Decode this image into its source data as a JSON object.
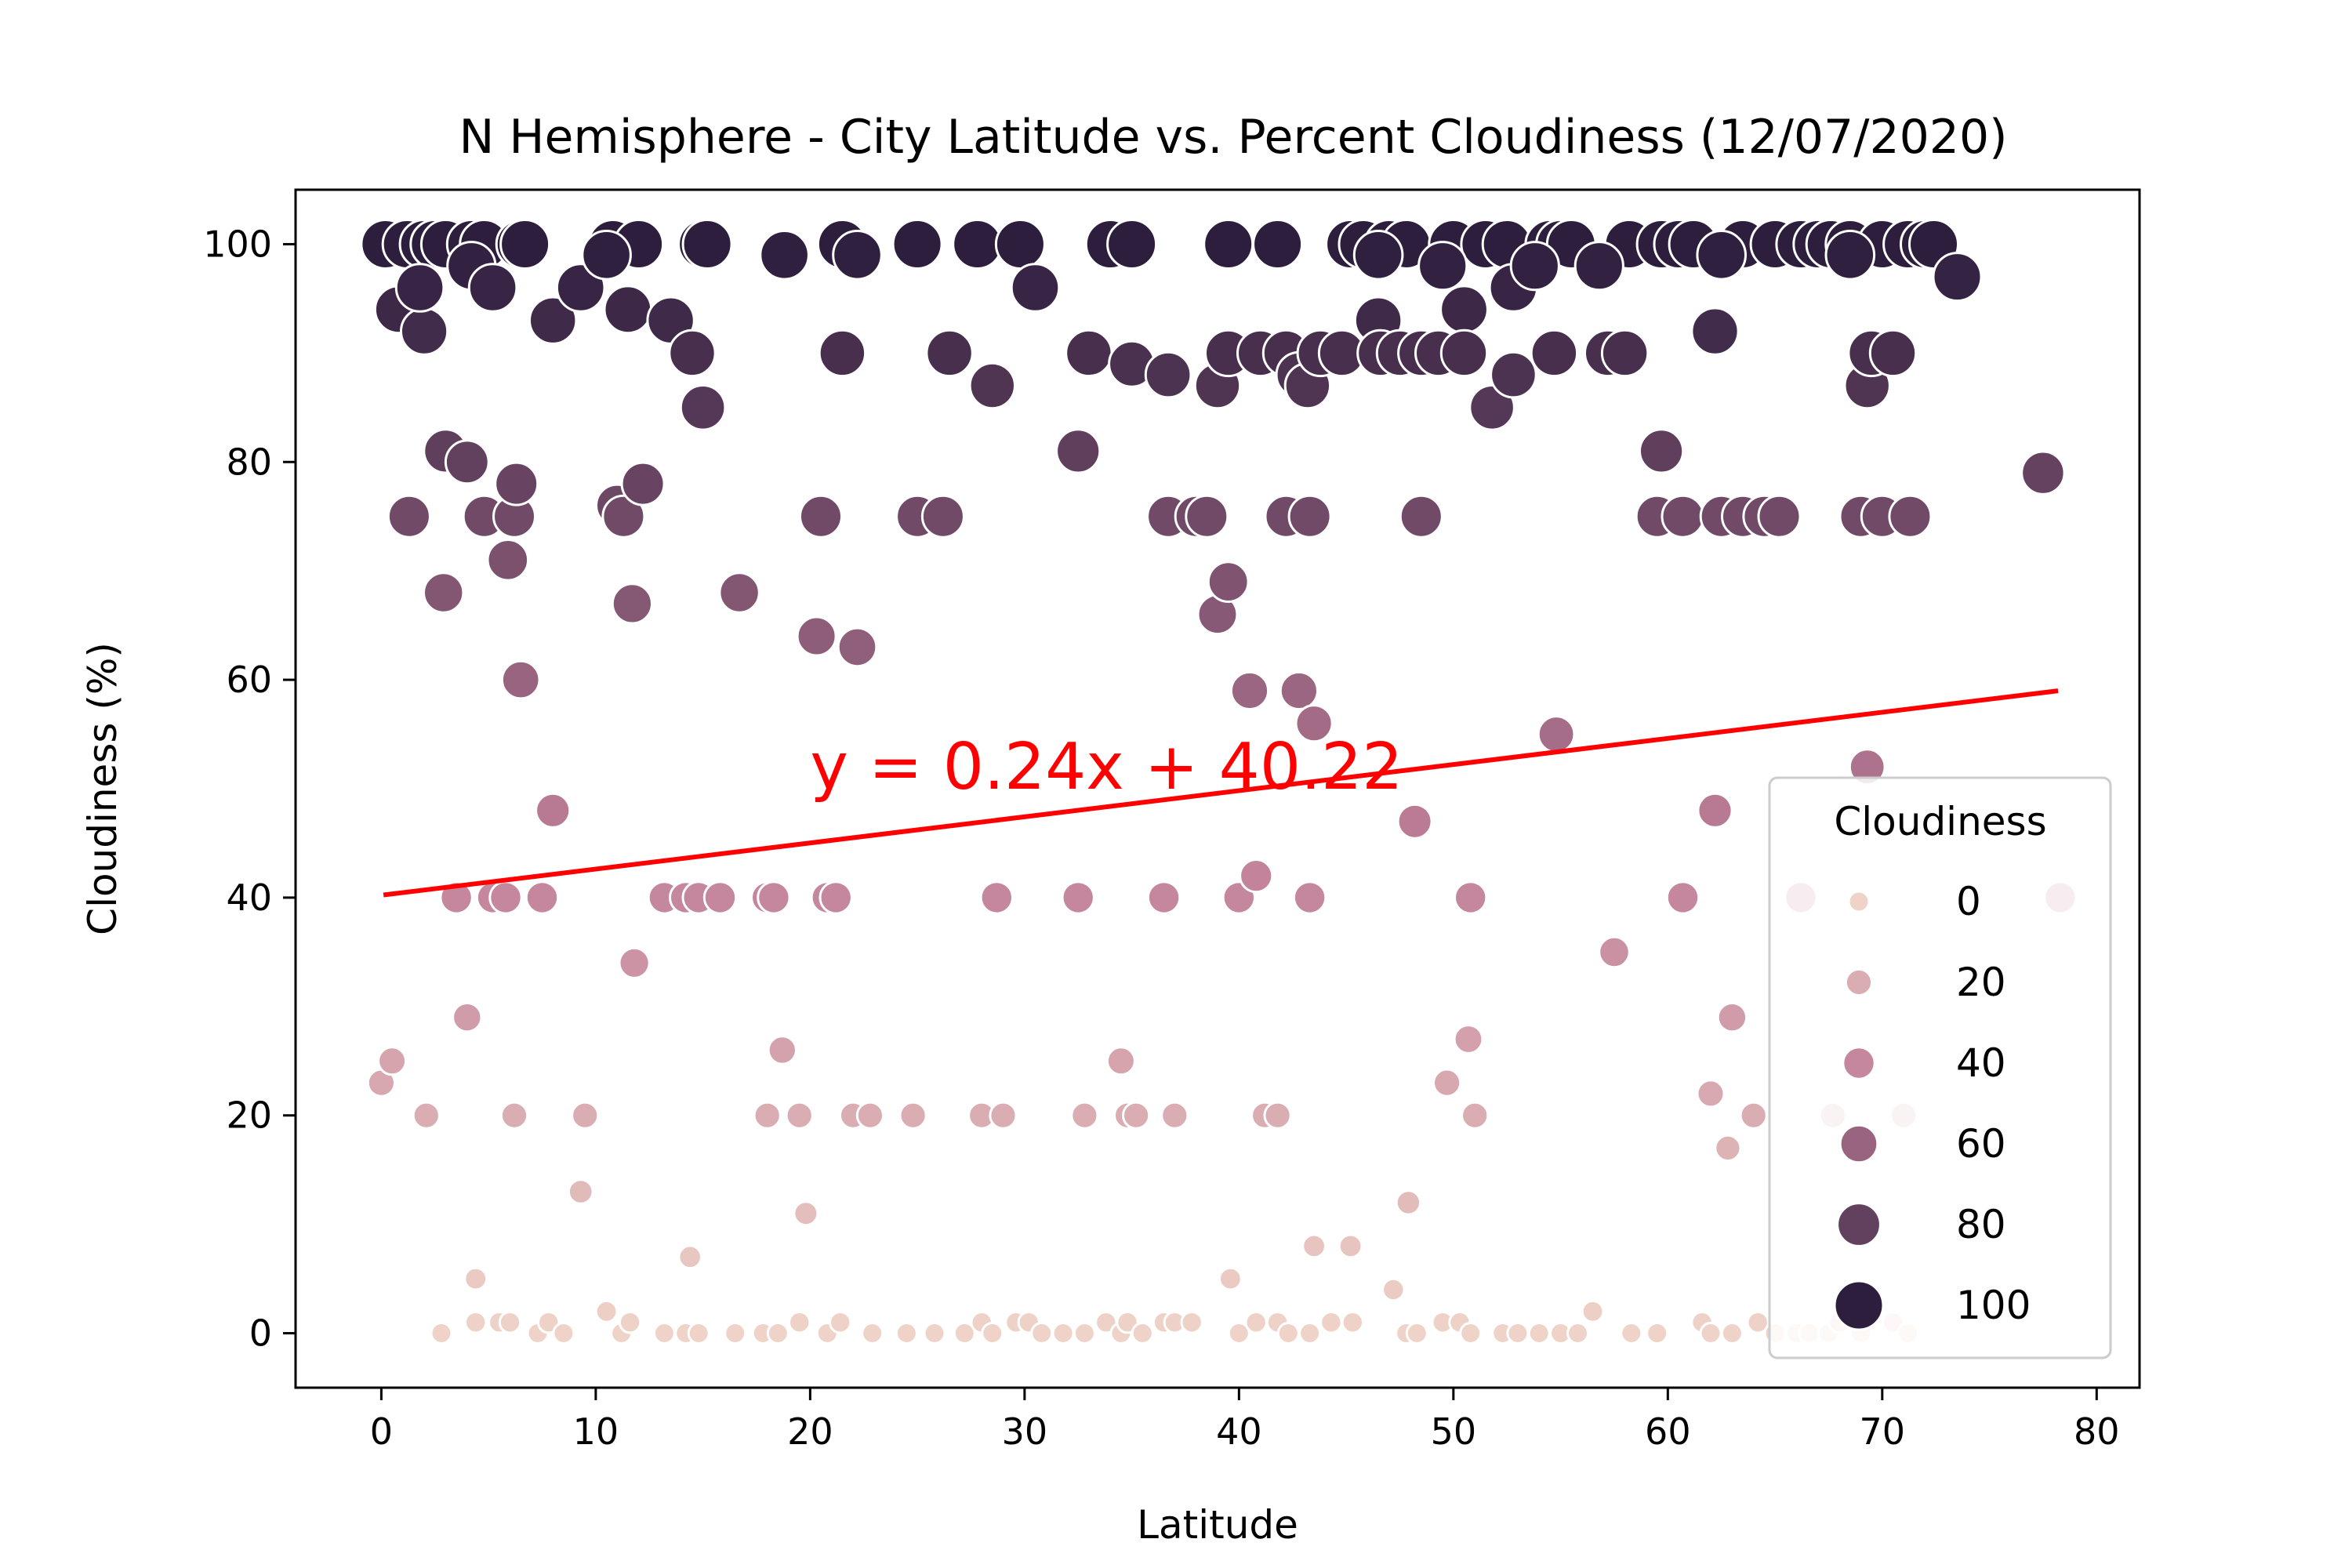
{
  "chart_data": {
    "type": "scatter",
    "title": "N Hemisphere - City Latitude vs. Percent Cloudiness (12/07/2020)",
    "xlabel": "Latitude",
    "ylabel": "Cloudiness (%)",
    "xlim": [
      -4,
      82
    ],
    "ylim": [
      -5,
      105
    ],
    "xticks": [
      0,
      10,
      20,
      30,
      40,
      50,
      60,
      70,
      80
    ],
    "yticks": [
      0,
      20,
      40,
      60,
      80,
      100
    ],
    "grid": false,
    "legend": {
      "title": "Cloudiness",
      "placement": "lower-right",
      "entries": [
        {
          "label": "0",
          "value": 0
        },
        {
          "label": "20",
          "value": 20
        },
        {
          "label": "40",
          "value": 40
        },
        {
          "label": "60",
          "value": 60
        },
        {
          "label": "80",
          "value": 80
        },
        {
          "label": "100",
          "value": 100
        }
      ]
    },
    "color_low": "#efd3c8",
    "color_high": "#2d1e3e",
    "regression": {
      "equation": "y = 0.24x + 40.22",
      "slope": 0.24,
      "intercept": 40.22,
      "x_range": [
        0.1,
        78.2
      ],
      "color": "#ff0000",
      "label_position": [
        20,
        50
      ]
    },
    "points": [
      [
        0.2,
        100
      ],
      [
        1.2,
        100
      ],
      [
        2.0,
        100
      ],
      [
        2.5,
        100
      ],
      [
        3.0,
        100
      ],
      [
        4.2,
        100
      ],
      [
        4.8,
        100
      ],
      [
        6.5,
        100
      ],
      [
        6.7,
        100
      ],
      [
        10.8,
        100
      ],
      [
        12.0,
        100
      ],
      [
        15.0,
        100
      ],
      [
        15.2,
        100
      ],
      [
        21.5,
        100
      ],
      [
        25.0,
        100
      ],
      [
        27.8,
        100
      ],
      [
        29.8,
        100
      ],
      [
        34.0,
        100
      ],
      [
        35.0,
        100
      ],
      [
        39.5,
        100
      ],
      [
        41.8,
        100
      ],
      [
        45.2,
        100
      ],
      [
        45.8,
        100
      ],
      [
        47.0,
        100
      ],
      [
        47.8,
        100
      ],
      [
        50.0,
        100
      ],
      [
        51.5,
        100
      ],
      [
        52.5,
        100
      ],
      [
        54.5,
        100
      ],
      [
        55.0,
        100
      ],
      [
        55.5,
        100
      ],
      [
        58.2,
        100
      ],
      [
        59.7,
        100
      ],
      [
        60.5,
        100
      ],
      [
        61.2,
        100
      ],
      [
        63.5,
        100
      ],
      [
        65.0,
        100
      ],
      [
        66.2,
        100
      ],
      [
        67.0,
        100
      ],
      [
        67.6,
        100
      ],
      [
        68.5,
        100
      ],
      [
        70.0,
        100
      ],
      [
        71.2,
        100
      ],
      [
        72.0,
        100
      ],
      [
        72.4,
        100
      ],
      [
        0.8,
        94
      ],
      [
        2.0,
        92
      ],
      [
        1.8,
        96
      ],
      [
        4.2,
        98
      ],
      [
        5.2,
        96
      ],
      [
        8.0,
        93
      ],
      [
        9.3,
        96
      ],
      [
        10.5,
        99
      ],
      [
        11.5,
        94
      ],
      [
        13.5,
        93
      ],
      [
        14.5,
        90
      ],
      [
        15.0,
        85
      ],
      [
        18.8,
        99
      ],
      [
        22.2,
        99
      ],
      [
        30.5,
        96
      ],
      [
        46.5,
        99
      ],
      [
        49.5,
        98
      ],
      [
        50.5,
        94
      ],
      [
        52.8,
        96
      ],
      [
        53.8,
        98
      ],
      [
        56.8,
        98
      ],
      [
        62.5,
        99
      ],
      [
        68.5,
        99
      ],
      [
        73.5,
        97
      ],
      [
        21.5,
        90
      ],
      [
        26.5,
        90
      ],
      [
        28.5,
        87
      ],
      [
        33.0,
        90
      ],
      [
        35.0,
        89
      ],
      [
        36.7,
        88
      ],
      [
        39.0,
        87
      ],
      [
        39.5,
        90
      ],
      [
        41.0,
        90
      ],
      [
        42.2,
        90
      ],
      [
        42.8,
        88
      ],
      [
        43.2,
        87
      ],
      [
        43.8,
        90
      ],
      [
        44.8,
        90
      ],
      [
        46.5,
        93
      ],
      [
        46.6,
        90
      ],
      [
        47.5,
        90
      ],
      [
        48.5,
        90
      ],
      [
        49.3,
        90
      ],
      [
        50.5,
        90
      ],
      [
        51.8,
        85
      ],
      [
        52.8,
        88
      ],
      [
        54.7,
        90
      ],
      [
        57.2,
        90
      ],
      [
        58.0,
        90
      ],
      [
        62.2,
        92
      ],
      [
        69.3,
        87
      ],
      [
        69.5,
        90
      ],
      [
        70.5,
        90
      ],
      [
        1.3,
        75
      ],
      [
        3.0,
        81
      ],
      [
        4.0,
        80
      ],
      [
        4.8,
        75
      ],
      [
        6.2,
        75
      ],
      [
        6.3,
        78
      ],
      [
        11.0,
        76
      ],
      [
        11.3,
        75
      ],
      [
        12.2,
        78
      ],
      [
        20.5,
        75
      ],
      [
        25.0,
        75
      ],
      [
        26.2,
        75
      ],
      [
        32.5,
        81
      ],
      [
        36.7,
        75
      ],
      [
        38.0,
        75
      ],
      [
        38.5,
        75
      ],
      [
        42.2,
        75
      ],
      [
        43.3,
        75
      ],
      [
        48.5,
        75
      ],
      [
        59.5,
        75
      ],
      [
        59.7,
        81
      ],
      [
        60.7,
        75
      ],
      [
        62.5,
        75
      ],
      [
        63.5,
        75
      ],
      [
        64.5,
        75
      ],
      [
        65.2,
        75
      ],
      [
        69.0,
        75
      ],
      [
        70.0,
        75
      ],
      [
        71.3,
        75
      ],
      [
        77.5,
        79
      ],
      [
        2.9,
        68
      ],
      [
        5.9,
        71
      ],
      [
        6.5,
        60
      ],
      [
        11.7,
        67
      ],
      [
        16.7,
        68
      ],
      [
        20.3,
        64
      ],
      [
        22.2,
        63
      ],
      [
        39.0,
        66
      ],
      [
        39.5,
        69
      ],
      [
        40.5,
        59
      ],
      [
        42.8,
        59
      ],
      [
        43.5,
        56
      ],
      [
        54.8,
        55
      ],
      [
        69.3,
        52
      ],
      [
        3.5,
        40
      ],
      [
        5.2,
        40
      ],
      [
        5.8,
        40
      ],
      [
        7.5,
        40
      ],
      [
        8.0,
        48
      ],
      [
        11.8,
        34
      ],
      [
        13.2,
        40
      ],
      [
        14.2,
        40
      ],
      [
        14.8,
        40
      ],
      [
        15.8,
        40
      ],
      [
        18.0,
        40
      ],
      [
        18.3,
        40
      ],
      [
        20.8,
        40
      ],
      [
        21.2,
        40
      ],
      [
        28.7,
        40
      ],
      [
        32.5,
        40
      ],
      [
        36.5,
        40
      ],
      [
        40.0,
        40
      ],
      [
        40.8,
        42
      ],
      [
        43.3,
        40
      ],
      [
        48.2,
        47
      ],
      [
        50.8,
        40
      ],
      [
        60.7,
        40
      ],
      [
        62.2,
        48
      ],
      [
        66.2,
        40
      ],
      [
        78.3,
        40
      ],
      [
        0.0,
        23
      ],
      [
        0.5,
        25
      ],
      [
        2.1,
        20
      ],
      [
        4.0,
        29
      ],
      [
        6.2,
        20
      ],
      [
        9.5,
        20
      ],
      [
        9.3,
        13
      ],
      [
        18.0,
        20
      ],
      [
        18.7,
        26
      ],
      [
        19.5,
        20
      ],
      [
        19.8,
        11
      ],
      [
        22.0,
        20
      ],
      [
        22.8,
        20
      ],
      [
        24.8,
        20
      ],
      [
        28.0,
        20
      ],
      [
        29.0,
        20
      ],
      [
        32.8,
        20
      ],
      [
        34.5,
        25
      ],
      [
        34.8,
        20
      ],
      [
        35.2,
        20
      ],
      [
        37.0,
        20
      ],
      [
        41.2,
        20
      ],
      [
        41.8,
        20
      ],
      [
        49.7,
        23
      ],
      [
        50.7,
        27
      ],
      [
        51.0,
        20
      ],
      [
        47.9,
        12
      ],
      [
        57.5,
        35
      ],
      [
        62.0,
        22
      ],
      [
        62.8,
        17
      ],
      [
        63.0,
        29
      ],
      [
        64.0,
        20
      ],
      [
        67.7,
        20
      ],
      [
        71.0,
        20
      ],
      [
        4.4,
        5
      ],
      [
        14.4,
        7
      ],
      [
        39.6,
        5
      ],
      [
        43.5,
        8
      ],
      [
        45.2,
        8
      ],
      [
        47.2,
        4
      ],
      [
        56.5,
        2
      ],
      [
        10.5,
        2
      ],
      [
        2.8,
        0
      ],
      [
        4.4,
        1
      ],
      [
        5.5,
        1
      ],
      [
        6.0,
        1
      ],
      [
        7.3,
        0
      ],
      [
        7.8,
        1
      ],
      [
        8.5,
        0
      ],
      [
        11.2,
        0
      ],
      [
        11.6,
        1
      ],
      [
        13.2,
        0
      ],
      [
        14.2,
        0
      ],
      [
        14.8,
        0
      ],
      [
        16.5,
        0
      ],
      [
        17.8,
        0
      ],
      [
        18.5,
        0
      ],
      [
        19.5,
        1
      ],
      [
        20.8,
        0
      ],
      [
        21.4,
        1
      ],
      [
        22.9,
        0
      ],
      [
        24.5,
        0
      ],
      [
        25.8,
        0
      ],
      [
        27.2,
        0
      ],
      [
        28.0,
        1
      ],
      [
        28.5,
        0
      ],
      [
        29.6,
        1
      ],
      [
        30.2,
        1
      ],
      [
        30.8,
        0
      ],
      [
        31.8,
        0
      ],
      [
        32.8,
        0
      ],
      [
        33.8,
        1
      ],
      [
        34.5,
        0
      ],
      [
        34.8,
        1
      ],
      [
        35.5,
        0
      ],
      [
        36.5,
        1
      ],
      [
        37.0,
        1
      ],
      [
        37.8,
        1
      ],
      [
        40.0,
        0
      ],
      [
        40.8,
        1
      ],
      [
        41.8,
        1
      ],
      [
        42.3,
        0
      ],
      [
        43.3,
        0
      ],
      [
        44.3,
        1
      ],
      [
        45.3,
        1
      ],
      [
        47.8,
        0
      ],
      [
        48.3,
        0
      ],
      [
        49.5,
        1
      ],
      [
        50.3,
        1
      ],
      [
        50.8,
        0
      ],
      [
        52.3,
        0
      ],
      [
        53.0,
        0
      ],
      [
        54.0,
        0
      ],
      [
        55.0,
        0
      ],
      [
        55.8,
        0
      ],
      [
        58.3,
        0
      ],
      [
        59.5,
        0
      ],
      [
        61.6,
        1
      ],
      [
        62.0,
        0
      ],
      [
        63.0,
        0
      ],
      [
        64.2,
        1
      ],
      [
        65.0,
        0
      ],
      [
        66.0,
        0
      ],
      [
        66.6,
        0
      ],
      [
        67.5,
        0
      ],
      [
        68.0,
        1
      ],
      [
        69.0,
        0
      ],
      [
        70.5,
        1
      ],
      [
        71.2,
        0
      ]
    ]
  }
}
